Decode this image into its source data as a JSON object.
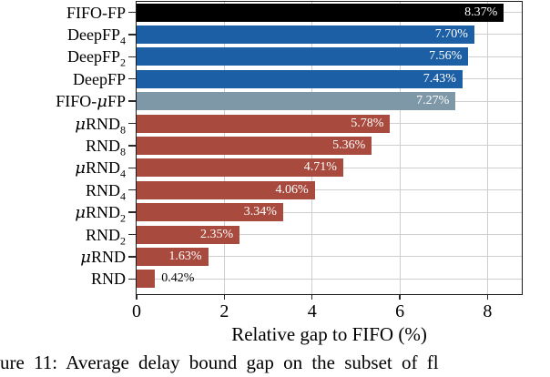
{
  "chart_data": {
    "type": "bar",
    "orientation": "horizontal",
    "title": "",
    "xlabel": "Relative gap to FIFO (%)",
    "ylabel": "",
    "xlim": [
      0,
      8.78
    ],
    "xticks": [
      "0",
      "2",
      "4",
      "6",
      "8"
    ],
    "xtick_values": [
      0,
      2,
      4,
      6,
      8
    ],
    "grid": true,
    "legend": null,
    "bars": [
      {
        "label": "FIFO-FP",
        "sub": "",
        "value": 8.37,
        "value_label": "8.37%",
        "color": "#000000",
        "label_placement": "inside"
      },
      {
        "label": "DeepFP",
        "sub": "4",
        "value": 7.7,
        "value_label": "7.70%",
        "color": "#1d5fa4",
        "label_placement": "inside"
      },
      {
        "label": "DeepFP",
        "sub": "2",
        "value": 7.56,
        "value_label": "7.56%",
        "color": "#1d5fa4",
        "label_placement": "inside"
      },
      {
        "label": "DeepFP",
        "sub": "",
        "value": 7.43,
        "value_label": "7.43%",
        "color": "#1d5fa4",
        "label_placement": "inside"
      },
      {
        "label": "FIFO-μFP",
        "sub": "",
        "value": 7.27,
        "value_label": "7.27%",
        "color": "#7e98a8",
        "label_placement": "inside"
      },
      {
        "label": "μRND",
        "sub": "8",
        "value": 5.78,
        "value_label": "5.78%",
        "color": "#a84b3e",
        "label_placement": "inside"
      },
      {
        "label": "RND",
        "sub": "8",
        "value": 5.36,
        "value_label": "5.36%",
        "color": "#a84b3e",
        "label_placement": "inside"
      },
      {
        "label": "μRND",
        "sub": "4",
        "value": 4.71,
        "value_label": "4.71%",
        "color": "#a84b3e",
        "label_placement": "inside"
      },
      {
        "label": "RND",
        "sub": "4",
        "value": 4.06,
        "value_label": "4.06%",
        "color": "#a84b3e",
        "label_placement": "inside"
      },
      {
        "label": "μRND",
        "sub": "2",
        "value": 3.34,
        "value_label": "3.34%",
        "color": "#a84b3e",
        "label_placement": "inside"
      },
      {
        "label": "RND",
        "sub": "2",
        "value": 2.35,
        "value_label": "2.35%",
        "color": "#a84b3e",
        "label_placement": "inside"
      },
      {
        "label": "μRND",
        "sub": "",
        "value": 1.63,
        "value_label": "1.63%",
        "color": "#a84b3e",
        "label_placement": "inside"
      },
      {
        "label": "RND",
        "sub": "",
        "value": 0.42,
        "value_label": "0.42%",
        "color": "#a84b3e",
        "label_placement": "outside"
      }
    ],
    "colors": {
      "fifo_fp": "#000000",
      "deepfp": "#1d5fa4",
      "fifo_mufp": "#7e98a8",
      "rnd": "#a84b3e",
      "grid": "#cfcfcf",
      "spine": "#1a1a1a",
      "value_label_inside": "#ffffff",
      "value_label_outside": "#000000"
    }
  },
  "caption": {
    "visible_text": "ure 11: Average delay bound gap on the subset of fl"
  }
}
